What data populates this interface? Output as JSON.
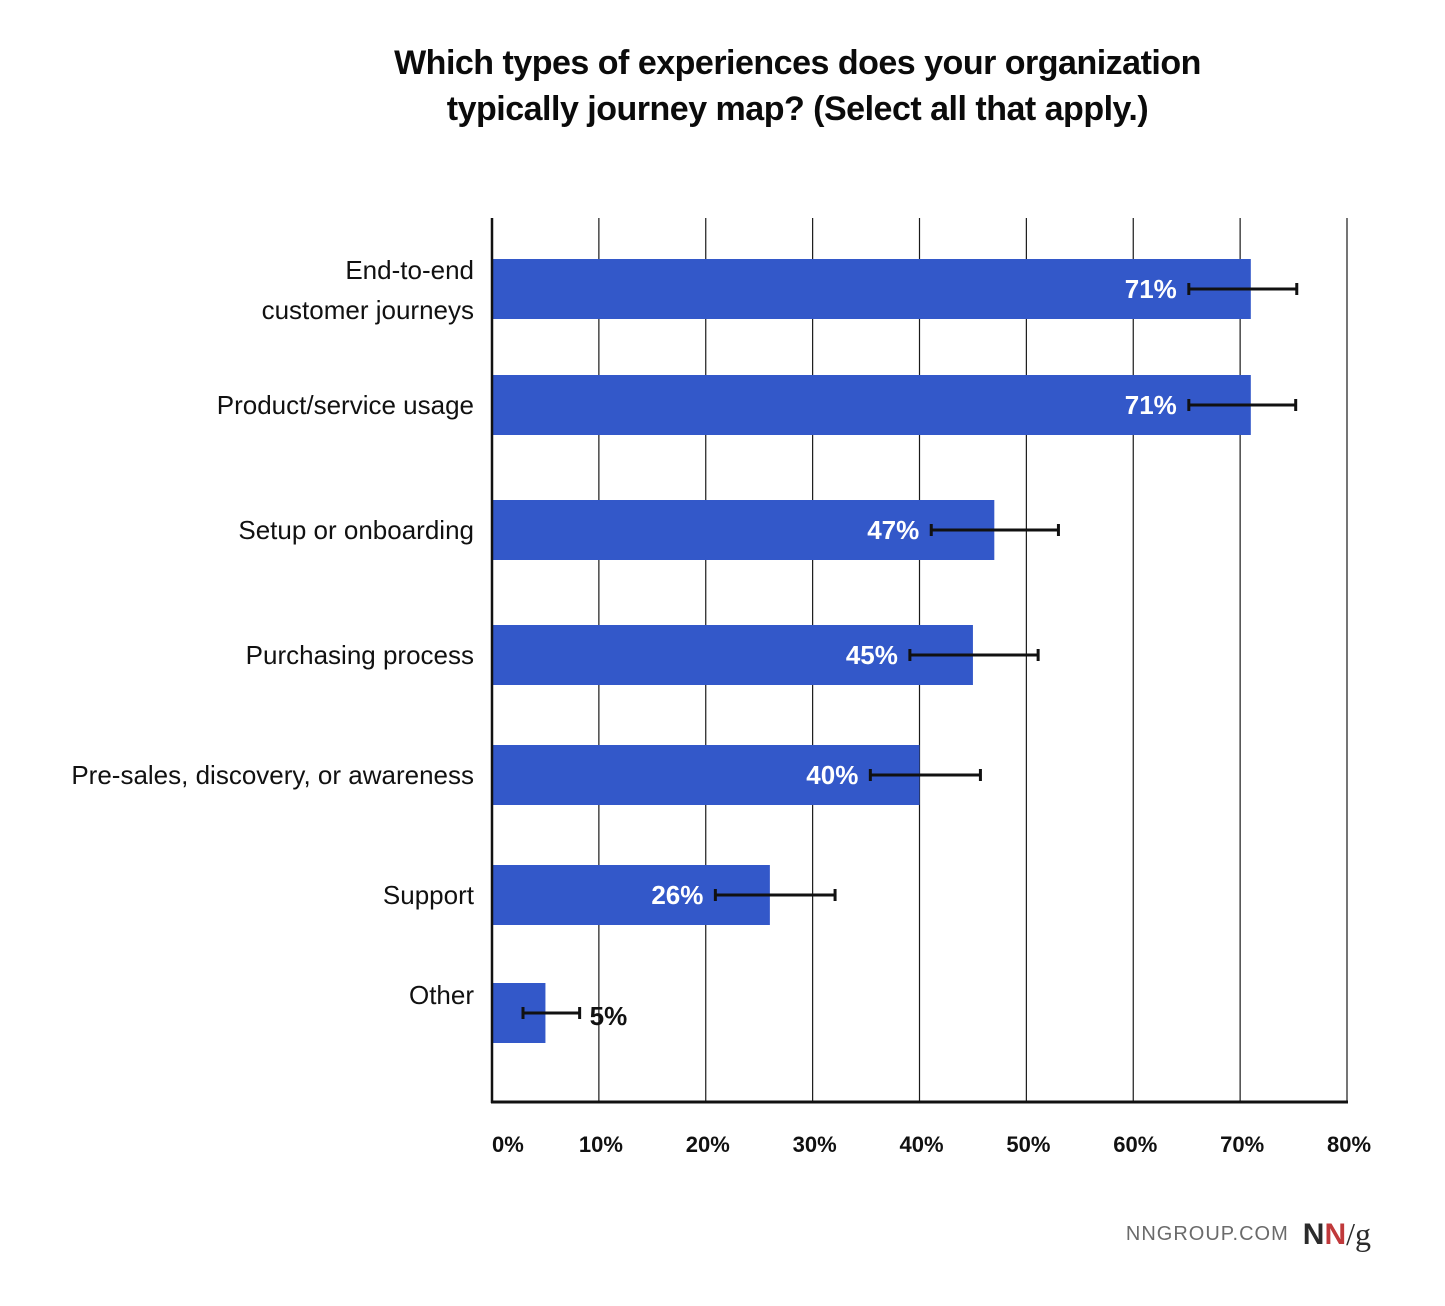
{
  "chart_data": {
    "type": "bar",
    "orientation": "horizontal",
    "title": "Which types of experiences does your organization typically journey map? (Select all that apply.)",
    "title_lines": [
      "Which types of experiences does your organization",
      "typically journey map? (Select all that apply.)"
    ],
    "xlabel": "",
    "ylabel": "",
    "xlim": [
      0,
      80
    ],
    "x_ticks": [
      0,
      10,
      20,
      30,
      40,
      50,
      60,
      70,
      80
    ],
    "x_tick_labels": [
      "0%",
      "10%",
      "20%",
      "30%",
      "40%",
      "50%",
      "60%",
      "70%",
      "80%"
    ],
    "grid": "vertical",
    "categories": [
      [
        "End-to-end",
        "customer journeys"
      ],
      [
        "Product/service usage"
      ],
      [
        "Setup or onboarding"
      ],
      [
        "Purchasing process"
      ],
      [
        "Pre-sales, discovery, or awareness"
      ],
      [
        "Support"
      ],
      [
        "Other"
      ]
    ],
    "values": [
      71,
      71,
      47,
      45,
      40,
      26,
      5
    ],
    "value_labels": [
      "71%",
      "71%",
      "47%",
      "45%",
      "40%",
      "26%",
      "5%"
    ],
    "error_bars": [
      [
        65.2,
        75.3
      ],
      [
        65.2,
        75.2
      ],
      [
        41.1,
        53.0
      ],
      [
        39.1,
        51.1
      ],
      [
        35.4,
        45.7
      ],
      [
        20.9,
        32.1
      ],
      [
        2.9,
        8.2
      ]
    ],
    "colors": {
      "bar": "#3358c9",
      "grid": "#1a1a1a",
      "axis": "#111111",
      "error": "#111111",
      "label_inside": "#ffffff",
      "label_outside": "#111111"
    }
  },
  "footer": {
    "site": "NNGROUP.COM",
    "logo": {
      "n1": "N",
      "n2": "N",
      "slash_g": "/g"
    }
  }
}
